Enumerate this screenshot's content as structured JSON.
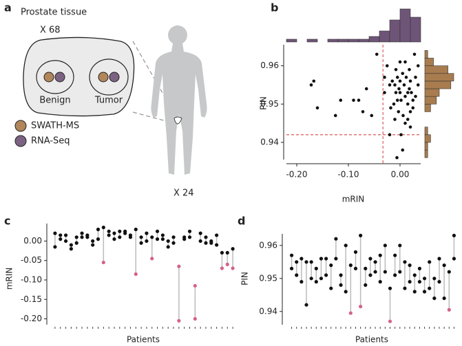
{
  "diagram": {
    "panel_label": "a",
    "title": "Prostate tissue",
    "tissue_count": "X 68",
    "regions": [
      "Benign",
      "Tumor"
    ],
    "legend": [
      {
        "label": "SWATH-MS",
        "color": "#b0865a"
      },
      {
        "label": "RNA-Seq",
        "color": "#7c6382"
      }
    ],
    "patient_count": "X 24"
  },
  "chart_data": [
    {
      "type": "scatter",
      "panel_label": "b",
      "x_label": "mRIN",
      "y_label": "PIN",
      "color": "#111111",
      "x": [
        -0.172,
        -0.167,
        -0.16,
        -0.125,
        -0.115,
        -0.09,
        -0.08,
        -0.072,
        -0.065,
        -0.055,
        -0.045,
        -0.03,
        -0.025,
        -0.02,
        -0.015,
        -0.01,
        -0.008,
        -0.005,
        -0.002,
        0.0,
        0.002,
        0.005,
        0.008,
        0.01,
        0.012,
        0.015,
        0.018,
        0.02,
        0.022,
        0.025,
        0.028,
        0.03,
        0.035,
        -0.012,
        -0.003,
        0.006,
        0.015,
        0.02,
        -0.018,
        0.025,
        0.0,
        0.01,
        0.018,
        -0.008,
        -0.02,
        0.002,
        0.005,
        -0.006,
        0.01,
        -0.01,
        0.03,
        0.035,
        -0.03,
        0.015,
        0.0,
        -0.005,
        0.02
      ],
      "y": [
        0.955,
        0.956,
        0.949,
        0.947,
        0.951,
        0.951,
        0.951,
        0.948,
        0.954,
        0.947,
        0.963,
        0.953,
        0.96,
        0.955,
        0.956,
        0.955,
        0.953,
        0.957,
        0.954,
        0.956,
        0.951,
        0.958,
        0.955,
        0.952,
        0.957,
        0.95,
        0.954,
        0.956,
        0.953,
        0.949,
        0.963,
        0.957,
        0.955,
        0.95,
        0.948,
        0.947,
        0.946,
        0.944,
        0.949,
        0.951,
        0.961,
        0.961,
        0.959,
        0.959,
        0.942,
        0.942,
        0.938,
        0.936,
        0.945,
        0.946,
        0.952,
        0.96,
        0.957,
        0.953,
        0.953,
        0.951,
        0.948
      ],
      "xlim": [
        -0.22,
        0.04
      ],
      "xticks": [
        {
          "value": -0.2,
          "label": "-0.20"
        },
        {
          "value": -0.1,
          "label": "-0.10"
        },
        {
          "value": 0,
          "label": "0.00"
        }
      ],
      "ylim": [
        0.9355,
        0.9655
      ],
      "yticks": [
        0.94,
        0.95,
        0.96
      ],
      "ref_lines": {
        "x": -0.033,
        "y": 0.942,
        "color": "#e06666"
      },
      "x_histogram": {
        "bins": [
          -0.22,
          -0.2,
          -0.18,
          -0.16,
          -0.14,
          -0.12,
          -0.1,
          -0.08,
          -0.06,
          -0.04,
          -0.02,
          0.0,
          0.02,
          0.04
        ],
        "counts": [
          1,
          0,
          1,
          0,
          1,
          1,
          1,
          1,
          2,
          4,
          8,
          12,
          9
        ],
        "color": "#6e5577"
      },
      "y_histogram": {
        "bins": [
          0.936,
          0.938,
          0.94,
          0.942,
          0.944,
          0.946,
          0.948,
          0.95,
          0.952,
          0.954,
          0.956,
          0.958,
          0.96,
          0.962,
          0.964
        ],
        "counts": [
          1,
          1,
          2,
          1,
          0,
          0,
          2,
          4,
          5,
          9,
          10,
          8,
          3,
          1
        ],
        "color": "#a87c4f"
      }
    },
    {
      "type": "paired",
      "panel_label": "c",
      "x_label": "Patients",
      "y_label": "mRIN",
      "categories": [
        null,
        null,
        null,
        null,
        null,
        null,
        null,
        null,
        null,
        null,
        null,
        null,
        null,
        null,
        null,
        null,
        null,
        null,
        null,
        null,
        null,
        null,
        null,
        null,
        null,
        null,
        null,
        null,
        null,
        null,
        null,
        null,
        null,
        null
      ],
      "series": [
        {
          "values": [
            0.02,
            0.015,
            0.015,
            -0.01,
            0.01,
            0.01,
            0.015,
            0.0,
            0.03,
            0.035,
            0.025,
            0.02,
            0.025,
            0.025,
            0.015,
            0.03,
            0.01,
            0.02,
            0.01,
            0.025,
            0.015,
            0.0,
            0.01,
            -0.065,
            0.01,
            0.025,
            -0.115,
            0.02,
            0.01,
            0.0,
            0.015,
            -0.03,
            -0.03,
            -0.02
          ]
        },
        {
          "values": [
            -0.015,
            0.005,
            0.0,
            -0.02,
            -0.005,
            0.02,
            0.01,
            -0.01,
            0.005,
            -0.055,
            0.015,
            0.005,
            0.01,
            0.02,
            0.01,
            -0.085,
            -0.005,
            0.0,
            -0.045,
            0.005,
            0.005,
            -0.015,
            -0.005,
            -0.205,
            0.005,
            0.01,
            -0.2,
            0.0,
            -0.005,
            -0.005,
            -0.01,
            -0.07,
            -0.06,
            -0.07
          ]
        }
      ],
      "color": "#111111",
      "highlight_color": "#d6618a",
      "line_color": "#bbbbbb",
      "threshold": -0.033,
      "ylim": [
        -0.215,
        0.045
      ],
      "yticks": [
        {
          "value": 0,
          "label": "0.00"
        },
        {
          "value": -0.05,
          "label": "-0.05"
        },
        {
          "value": -0.1,
          "label": "-0.10"
        },
        {
          "value": -0.15,
          "label": "-0.15"
        },
        {
          "value": -0.2,
          "label": "-0.20"
        }
      ]
    },
    {
      "type": "paired",
      "panel_label": "d",
      "x_label": "Patients",
      "y_label": "PIN",
      "categories": [
        null,
        null,
        null,
        null,
        null,
        null,
        null,
        null,
        null,
        null,
        null,
        null,
        null,
        null,
        null,
        null,
        null,
        null,
        null,
        null,
        null,
        null,
        null,
        null,
        null,
        null,
        null,
        null,
        null,
        null,
        null,
        null,
        null,
        null
      ],
      "series": [
        {
          "values": [
            0.957,
            0.955,
            0.956,
            0.955,
            0.955,
            0.953,
            0.956,
            0.956,
            0.954,
            0.962,
            0.951,
            0.96,
            0.954,
            0.958,
            0.963,
            0.953,
            0.956,
            0.955,
            0.957,
            0.96,
            0.947,
            0.957,
            0.96,
            0.955,
            0.954,
            0.951,
            0.953,
            0.95,
            0.955,
            0.95,
            0.956,
            0.954,
            0.952,
            0.963
          ]
        },
        {
          "values": [
            0.953,
            0.951,
            0.949,
            0.942,
            0.95,
            0.949,
            0.95,
            0.951,
            0.947,
            0.956,
            0.948,
            0.946,
            0.9395,
            0.953,
            0.9415,
            0.948,
            0.951,
            0.952,
            0.949,
            0.952,
            0.937,
            0.951,
            0.952,
            0.947,
            0.949,
            0.946,
            0.949,
            0.946,
            0.947,
            0.944,
            0.949,
            0.944,
            0.9405,
            0.956
          ]
        }
      ],
      "color": "#111111",
      "highlight_color": "#d6618a",
      "line_color": "#bbbbbb",
      "threshold": 0.942,
      "ylim": [
        0.936,
        0.9635
      ],
      "yticks": [
        0.94,
        0.95,
        0.96
      ]
    }
  ]
}
